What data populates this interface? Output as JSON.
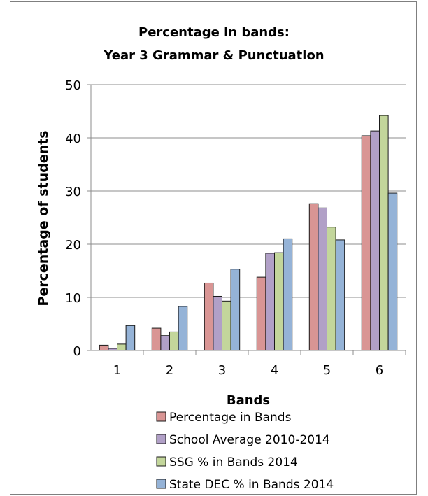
{
  "chart_data": {
    "type": "bar",
    "title": [
      "Percentage in bands:",
      "Year 3 Grammar & Punctuation"
    ],
    "xlabel": "Bands",
    "ylabel": "Percentage of students",
    "categories": [
      "1",
      "2",
      "3",
      "4",
      "5",
      "6"
    ],
    "ylim": [
      0,
      50
    ],
    "yticks": [
      0,
      10,
      20,
      30,
      40,
      50
    ],
    "grid": true,
    "legend_position": "bottom",
    "series": [
      {
        "name": "Percentage in Bands",
        "color": "#d99594",
        "values": [
          1.0,
          4.2,
          12.7,
          13.8,
          27.6,
          40.4
        ]
      },
      {
        "name": "School Average 2010-2014",
        "color": "#b1a0c7",
        "values": [
          0.4,
          2.8,
          10.2,
          18.3,
          26.8,
          41.3
        ]
      },
      {
        "name": "SSG % in Bands 2014",
        "color": "#c3d69b",
        "values": [
          1.2,
          3.5,
          9.3,
          18.4,
          23.2,
          44.2
        ]
      },
      {
        "name": "State DEC % in Bands 2014",
        "color": "#95b3d7",
        "values": [
          4.7,
          8.3,
          15.3,
          21.0,
          20.8,
          29.6
        ]
      }
    ]
  }
}
